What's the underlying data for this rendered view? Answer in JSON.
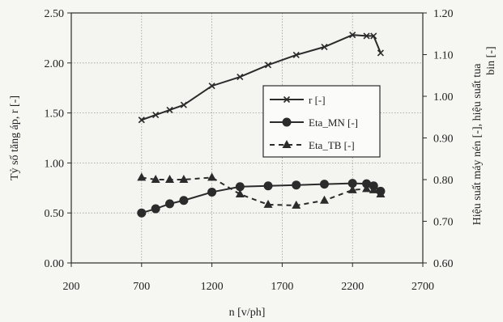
{
  "chart_data": {
    "type": "line",
    "xlabel": "n [v/ph]",
    "ylabel": "Tỷ số tăng áp, r [-]",
    "y2label_line1": "Hiệu suất máy nén [-], hiệu suất tua",
    "y2label_line2": "bin [-]",
    "xlim": [
      200,
      2700
    ],
    "ylim": [
      0,
      2.5
    ],
    "y2lim": [
      0.6,
      1.2
    ],
    "x_ticks": [
      "200",
      "700",
      "1200",
      "1700",
      "2200",
      "2700"
    ],
    "y_ticks": [
      "0.00",
      "0.50",
      "1.00",
      "1.50",
      "2.00",
      "2.50"
    ],
    "y2_ticks": [
      "0.60",
      "0.70",
      "0.80",
      "0.90",
      "1.00",
      "1.10",
      "1.20"
    ],
    "grid": true,
    "legend_position": "right-center",
    "colors": {
      "line": "#2b2b2b",
      "background": "#f6f6f3",
      "grid": "#9a9a9a"
    },
    "series": [
      {
        "name": "r [-]",
        "axis": "left",
        "style": "solid",
        "marker": "x",
        "x": [
          700,
          800,
          900,
          1000,
          1200,
          1400,
          1600,
          1800,
          2000,
          2200,
          2300,
          2350,
          2400
        ],
        "y": [
          1.43,
          1.48,
          1.53,
          1.58,
          1.77,
          1.86,
          1.98,
          2.08,
          2.16,
          2.28,
          2.27,
          2.27,
          2.1
        ]
      },
      {
        "name": "Eta_MN [-]",
        "axis": "right",
        "style": "solid",
        "marker": "circle",
        "x": [
          700,
          800,
          900,
          1000,
          1200,
          1400,
          1600,
          1800,
          2000,
          2200,
          2300,
          2350,
          2400
        ],
        "y": [
          0.72,
          0.73,
          0.742,
          0.75,
          0.77,
          0.783,
          0.785,
          0.787,
          0.789,
          0.791,
          0.79,
          0.785,
          0.772
        ]
      },
      {
        "name": "Eta_TB [-]",
        "axis": "right",
        "style": "dashed",
        "marker": "triangle",
        "x": [
          700,
          800,
          900,
          1000,
          1200,
          1400,
          1600,
          1800,
          2000,
          2200,
          2300,
          2350,
          2400
        ],
        "y": [
          0.805,
          0.8,
          0.8,
          0.8,
          0.805,
          0.765,
          0.74,
          0.738,
          0.75,
          0.775,
          0.778,
          0.775,
          0.765
        ]
      }
    ]
  }
}
